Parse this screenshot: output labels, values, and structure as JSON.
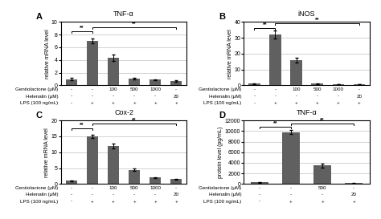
{
  "chart_data": [
    {
      "type": "bar",
      "panel_label": "A",
      "title": "TNF-α",
      "y_label": "relative mRNA level",
      "categories": [
        null,
        null,
        null,
        null,
        null,
        null
      ],
      "values": [
        1.0,
        7.0,
        4.3,
        1.1,
        0.9,
        0.7
      ],
      "errors": [
        0.15,
        0.4,
        0.5,
        0.15,
        0.1,
        0.1
      ],
      "color": "#606060",
      "ylim": [
        0,
        10
      ],
      "yticks": [
        0,
        2,
        4,
        6,
        8,
        10
      ],
      "grid": true,
      "tick_labels": "y",
      "annotations": [
        {
          "x1": 0,
          "x2": 1,
          "y": 8.5,
          "text": "**"
        },
        {
          "x1": 1,
          "x2": 5,
          "y": 9.2,
          "text": "**"
        }
      ],
      "table": [
        {
          "label": "Gentiolactone (μM)",
          "cells": [
            "-",
            "-",
            "100",
            "500",
            "1000",
            "-"
          ]
        },
        {
          "label": "Helenalin (μM)",
          "cells": [
            "-",
            "-",
            "-",
            "-",
            "-",
            "20"
          ]
        },
        {
          "label": "LPS (100 ng/mL)",
          "cells": [
            "-",
            "+",
            "+",
            "+",
            "+",
            "+"
          ]
        }
      ]
    },
    {
      "type": "bar",
      "panel_label": "B",
      "title": "iNOS",
      "y_label": "relative mRNA level",
      "categories": [
        null,
        null,
        null,
        null,
        null,
        null
      ],
      "values": [
        1.0,
        32.0,
        16.0,
        1.0,
        0.8,
        0.7
      ],
      "errors": [
        0.15,
        2.5,
        1.5,
        0.15,
        0.1,
        0.1
      ],
      "color": "#606060",
      "ylim": [
        0,
        40
      ],
      "yticks": [
        0,
        10,
        20,
        30,
        40
      ],
      "grid": true,
      "tick_labels": "y",
      "annotations": [
        {
          "x1": 0,
          "x2": 1,
          "y": 36,
          "text": "**"
        },
        {
          "x1": 1,
          "x2": 5,
          "y": 39,
          "text": "**"
        }
      ],
      "table": [
        {
          "label": "Gentiolactone (μM)",
          "cells": [
            "-",
            "-",
            "100",
            "500",
            "1000",
            "-"
          ]
        },
        {
          "label": "Helenalin (μM)",
          "cells": [
            "-",
            "-",
            "-",
            "-",
            "-",
            "20"
          ]
        },
        {
          "label": "LPS (100 ng/mL)",
          "cells": [
            "-",
            "+",
            "+",
            "+",
            "+",
            "+"
          ]
        }
      ]
    },
    {
      "type": "bar",
      "panel_label": "C",
      "title": "Cox-2",
      "y_label": "relative mRNA level",
      "categories": [
        null,
        null,
        null,
        null,
        null,
        null
      ],
      "values": [
        1.0,
        15.0,
        12.0,
        4.5,
        2.0,
        1.5
      ],
      "errors": [
        0.15,
        0.4,
        0.7,
        0.5,
        0.2,
        0.2
      ],
      "color": "#606060",
      "ylim": [
        0,
        20
      ],
      "yticks": [
        0,
        5,
        10,
        15,
        20
      ],
      "grid": true,
      "tick_labels": "y",
      "annotations": [
        {
          "x1": 0,
          "x2": 1,
          "y": 17.5,
          "text": "**"
        },
        {
          "x1": 1,
          "x2": 5,
          "y": 19.0,
          "text": "**"
        }
      ],
      "table": [
        {
          "label": "Gentiolactone (μM)",
          "cells": [
            "-",
            "-",
            "100",
            "500",
            "1000",
            "-"
          ]
        },
        {
          "label": "Helenalin (μM)",
          "cells": [
            "-",
            "-",
            "-",
            "-",
            "-",
            "20"
          ]
        },
        {
          "label": "LPS (100 ng/mL)",
          "cells": [
            "-",
            "+",
            "+",
            "+",
            "+",
            "+"
          ]
        }
      ]
    },
    {
      "type": "bar",
      "panel_label": "D",
      "title": "TNF-α",
      "y_label": "protein level (pg/mL)",
      "categories": [
        null,
        null,
        null,
        null
      ],
      "values": [
        300,
        9800,
        3500,
        150
      ],
      "errors": [
        50,
        400,
        400,
        30
      ],
      "color": "#606060",
      "ylim": [
        0,
        12000
      ],
      "yticks": [
        0,
        2000,
        4000,
        6000,
        8000,
        10000,
        12000
      ],
      "grid": true,
      "tick_labels": "y",
      "annotations": [
        {
          "x1": 0,
          "x2": 1,
          "y": 10800,
          "text": "**"
        },
        {
          "x1": 1,
          "x2": 3,
          "y": 11400,
          "text": "**"
        }
      ],
      "table": [
        {
          "label": "Gentiolactone (μM)",
          "cells": [
            "-",
            "-",
            "500",
            "-"
          ]
        },
        {
          "label": "Helenalin (μM)",
          "cells": [
            "-",
            "-",
            "-",
            "20"
          ]
        },
        {
          "label": "LPS (100 ng/mL)",
          "cells": [
            "-",
            "+",
            "+",
            "+"
          ]
        }
      ]
    }
  ]
}
